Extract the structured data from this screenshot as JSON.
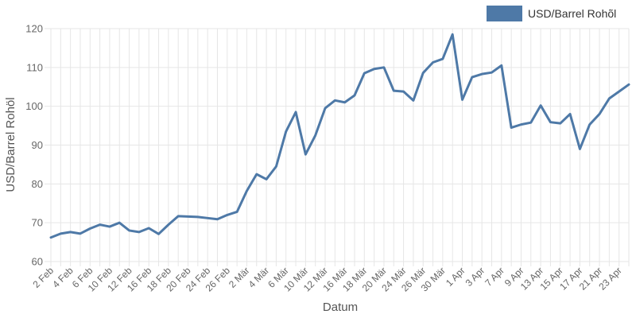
{
  "chart_data": {
    "type": "line",
    "xlabel": "Datum",
    "ylabel": "USD/Barrel Rohöl",
    "ylim": [
      60,
      120
    ],
    "yticks": [
      60,
      70,
      80,
      90,
      100,
      110,
      120
    ],
    "grid": true,
    "legend_position": "top-right",
    "colors": {
      "series": "#4e79a7",
      "grid": "#e6e6e6"
    },
    "x": [
      "2 Feb",
      "3 Feb",
      "4 Feb",
      "5 Feb",
      "6 Feb",
      "9 Feb",
      "10 Feb",
      "11 Feb",
      "12 Feb",
      "13 Feb",
      "16 Feb",
      "17 Feb",
      "18 Feb",
      "19 Feb",
      "20 Feb",
      "23 Feb",
      "24 Feb",
      "25 Feb",
      "26 Feb",
      "27 Feb",
      "2 Mär",
      "3 Mär",
      "4 Mär",
      "5 Mär",
      "6 Mär",
      "9 Mär",
      "10 Mär",
      "11 Mär",
      "12 Mär",
      "13 Mär",
      "16 Mär",
      "17 Mär",
      "18 Mär",
      "19 Mär",
      "20 Mär",
      "23 Mär",
      "24 Mär",
      "25 Mär",
      "26 Mär",
      "27 Mär",
      "30 Mär",
      "31 Mär",
      "1 Apr",
      "2 Apr",
      "3 Apr",
      "6 Apr",
      "7 Apr",
      "8 Apr",
      "9 Apr",
      "10 Apr",
      "13 Apr",
      "14 Apr",
      "15 Apr",
      "16 Apr",
      "17 Apr",
      "20 Apr",
      "21 Apr",
      "22 Apr",
      "23 Apr",
      "24 Apr"
    ],
    "x_tick_labels": [
      "2 Feb",
      "4 Feb",
      "6 Feb",
      "10 Feb",
      "12 Feb",
      "16 Feb",
      "18 Feb",
      "20 Feb",
      "24 Feb",
      "26 Feb",
      "2 Mär",
      "4 Mär",
      "6 Mär",
      "10 Mär",
      "12 Mär",
      "16 Mär",
      "18 Mär",
      "20 Mär",
      "24 Mär",
      "26 Mär",
      "30 Mär",
      "1 Apr",
      "3 Apr",
      "7 Apr",
      "9 Apr",
      "13 Apr",
      "15 Apr",
      "17 Apr",
      "21 Apr",
      "23 Apr"
    ],
    "series": [
      {
        "name": "USD/Barrel Rohõl",
        "values": [
          66.2,
          67.2,
          67.6,
          67.2,
          68.5,
          69.5,
          69.0,
          70.0,
          68.0,
          67.6,
          68.6,
          67.1,
          69.5,
          71.7,
          71.6,
          71.5,
          71.2,
          70.9,
          72.0,
          72.8,
          78.2,
          82.5,
          81.2,
          84.5,
          93.5,
          98.5,
          87.6,
          92.5,
          99.5,
          101.5,
          101.0,
          102.8,
          108.5,
          109.6,
          110.0,
          104.0,
          103.8,
          101.5,
          108.6,
          111.3,
          112.2,
          118.5,
          101.7,
          107.5,
          108.3,
          108.7,
          110.5,
          94.5,
          95.3,
          95.8,
          100.2,
          95.9,
          95.6,
          98.0,
          89.0,
          95.3,
          98.0,
          102.0,
          103.8,
          105.6
        ]
      }
    ]
  }
}
